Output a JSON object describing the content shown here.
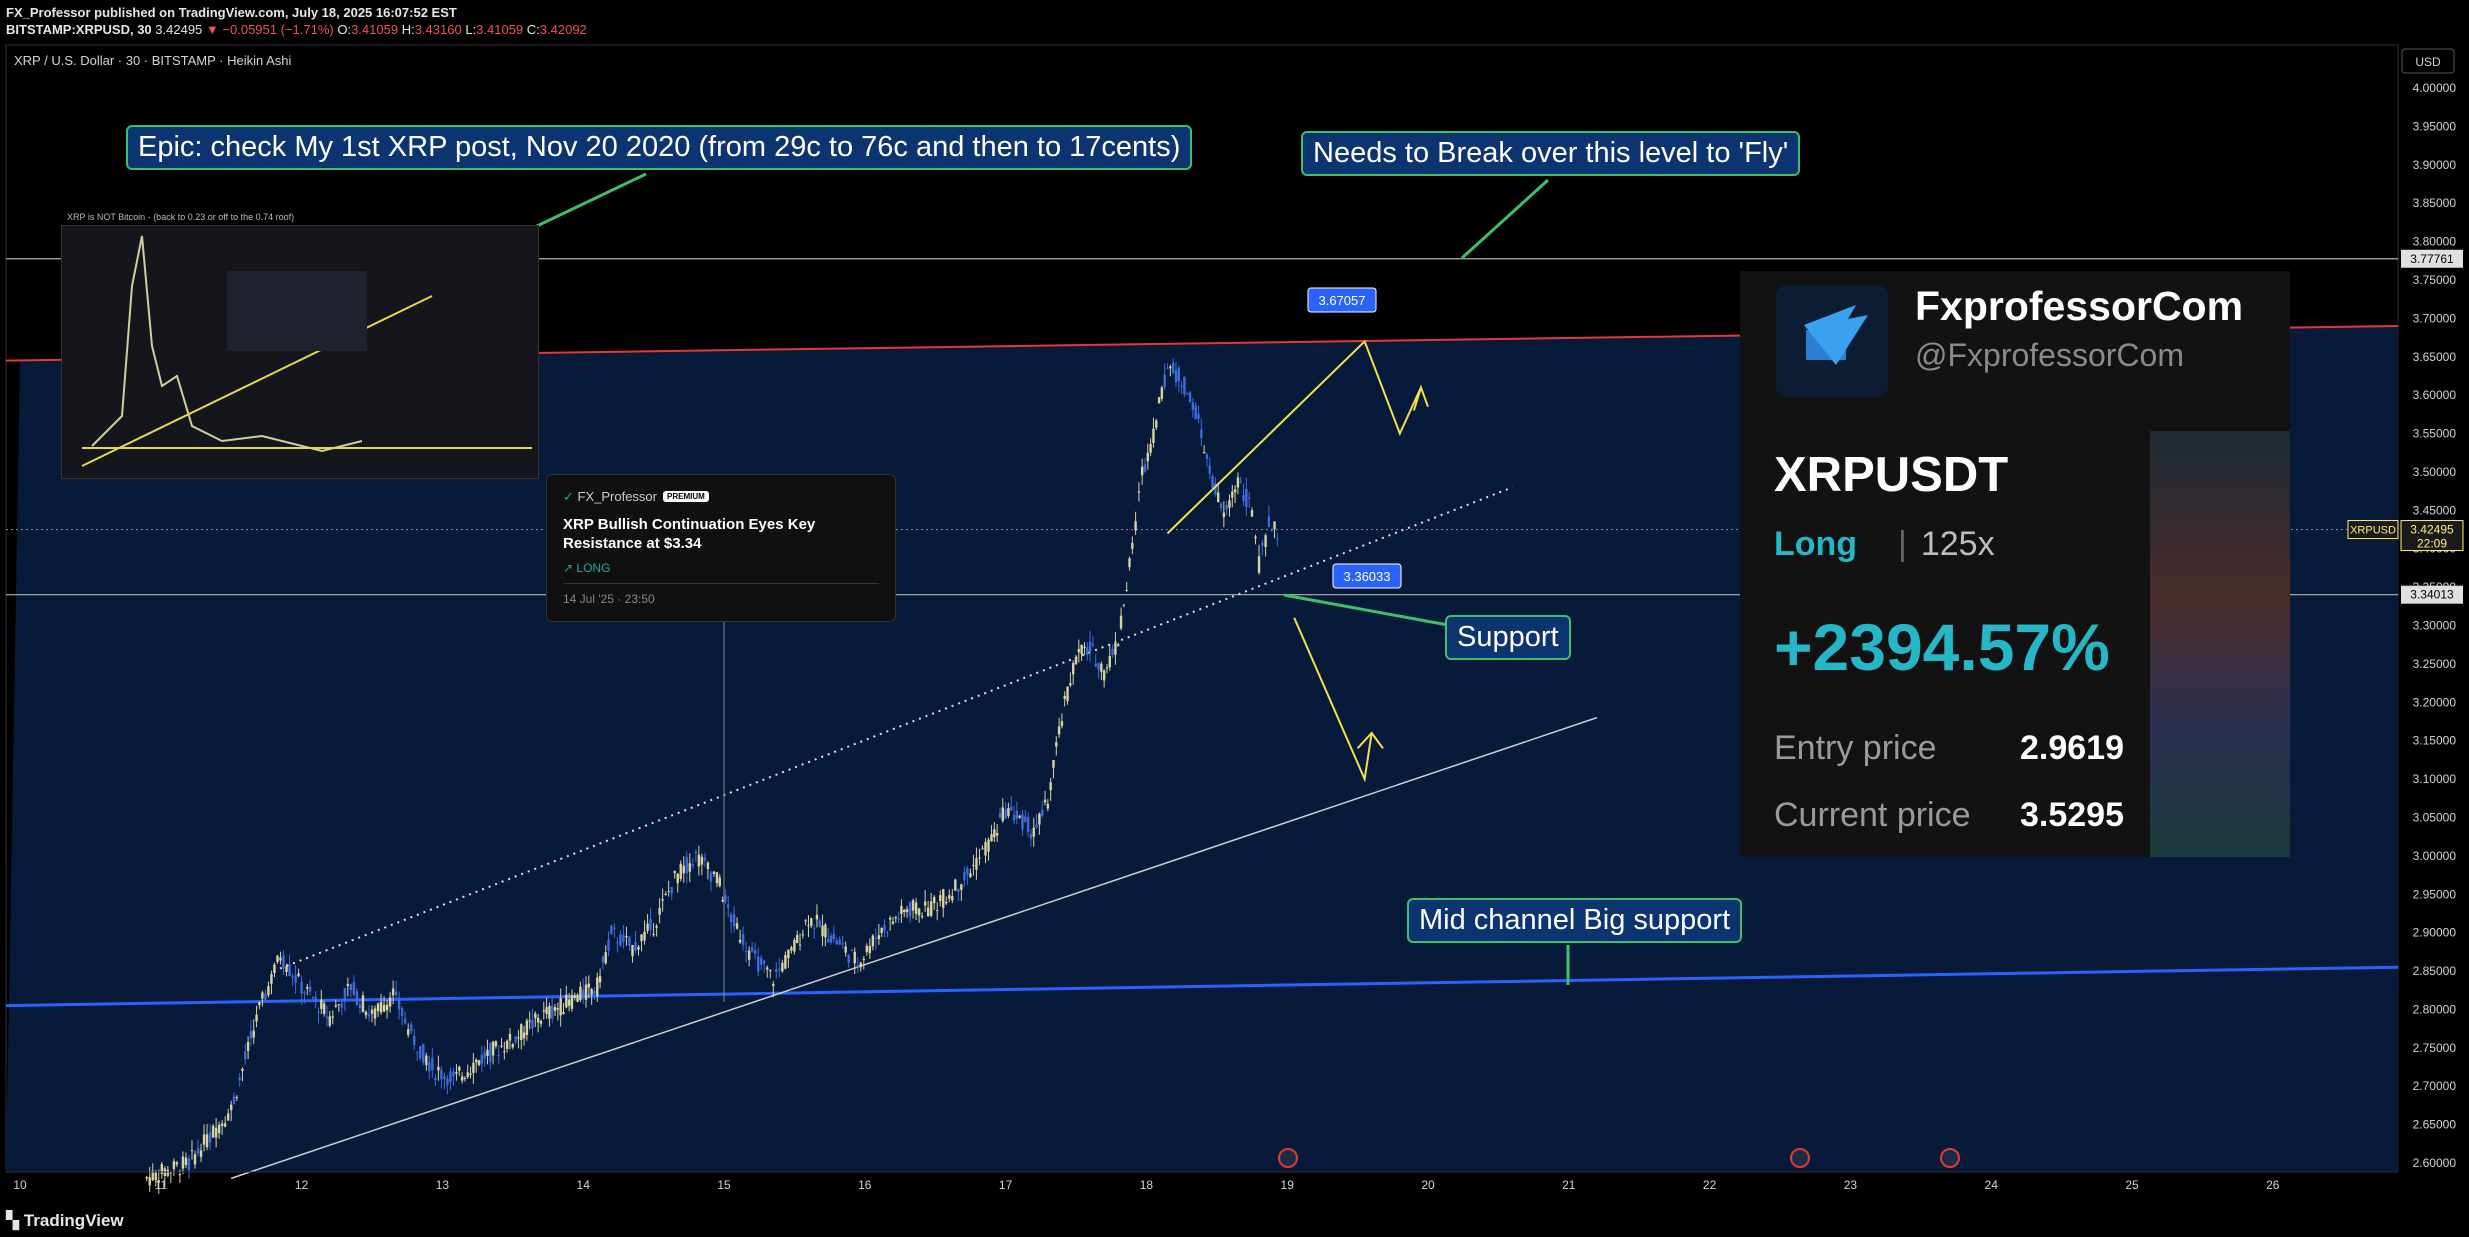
{
  "header": {
    "publish_line": "FX_Professor published on TradingView.com, July 18, 2025 16:07:52 EST",
    "symbol": "BITSTAMP:XRPUSD, 30",
    "last": "3.42495",
    "change": "▼ −0.05951 (−1.71%)",
    "o_label": "O:",
    "o": "3.41059",
    "h_label": "H:",
    "h": "3.43160",
    "l_label": "L:",
    "l": "3.41059",
    "c_label": "C:",
    "c": "3.42092"
  },
  "legend": "XRP / U.S. Dollar · 30 · BITSTAMP · Heikin Ashi",
  "currency_button": "USD",
  "footer": "TradingView",
  "colors": {
    "background": "#000000",
    "channel_fill": "#071a3a",
    "bull_candle": "#d8d3a0",
    "bear_candle": "#3d6bdc",
    "resistance_line": "#e53935",
    "mid_line": "#2962ff",
    "arrow": "#f3e04a"
  },
  "callouts": {
    "epic": "Epic: check My 1st XRP post, Nov 20 2020 (from 29c to 76c and then to 17cents)",
    "fly": "Needs to Break over this level to 'Fly'",
    "support": "Support",
    "mid": "Mid channel Big support"
  },
  "idea_card": {
    "author": "FX_Professor",
    "badge": "PREMIUM",
    "title": "XRP Bullish Continuation Eyes Key Resistance at $3.34",
    "direction": "LONG",
    "date": "14 Jul '25 · 23:50"
  },
  "inset": {
    "title": "XRP is NOT Bitcoin - (back to 0.23 or off to the 0.74 roof)"
  },
  "promo": {
    "brand": "FxprofessorCom",
    "handle": "@FxprofessorCom",
    "symbol": "XRPUSDT",
    "side": "Long",
    "leverage": "125x",
    "pnl": "+2394.57%",
    "entry_label": "Entry price",
    "entry": "2.9619",
    "current_label": "Current price",
    "current": "3.5295"
  },
  "chart_data": {
    "type": "candlestick",
    "style": "Heikin Ashi",
    "timeframe": "30",
    "symbol": "XRPUSD",
    "x_ticks": [
      "10",
      "11",
      "12",
      "13",
      "14",
      "15",
      "16",
      "17",
      "18",
      "19",
      "20",
      "21",
      "22",
      "23",
      "24",
      "25",
      "26"
    ],
    "y_ticks": [
      "4.00000",
      "3.95000",
      "3.90000",
      "3.85000",
      "3.80000",
      "3.75000",
      "3.70000",
      "3.65000",
      "3.60000",
      "3.55000",
      "3.50000",
      "3.45000",
      "3.40000",
      "3.35000",
      "3.30000",
      "3.25000",
      "3.20000",
      "3.15000",
      "3.10000",
      "3.05000",
      "3.00000",
      "2.95000",
      "2.90000",
      "2.85000",
      "2.80000",
      "2.75000",
      "2.70000",
      "2.65000",
      "2.60000"
    ],
    "ylim": [
      2.58,
      4.03
    ],
    "price_labels": [
      {
        "text": "3.77761",
        "value": 3.77761
      },
      {
        "text": "3.42495",
        "value": 3.42495,
        "symbol": "XRPUSD",
        "timer": "22:09"
      },
      {
        "text": "3.34013",
        "value": 3.34013
      }
    ],
    "chart_labels": [
      {
        "text": "3.67057",
        "value": 3.67057
      },
      {
        "text": "3.36033",
        "value": 3.36033
      }
    ],
    "hist_close": [
      [
        10.9,
        2.58
      ],
      [
        11.2,
        2.6
      ],
      [
        11.5,
        2.67
      ],
      [
        11.7,
        2.8
      ],
      [
        11.85,
        2.87
      ],
      [
        12.0,
        2.83
      ],
      [
        12.2,
        2.79
      ],
      [
        12.35,
        2.83
      ],
      [
        12.5,
        2.79
      ],
      [
        12.65,
        2.82
      ],
      [
        12.8,
        2.76
      ],
      [
        12.95,
        2.72
      ],
      [
        13.1,
        2.71
      ],
      [
        13.3,
        2.74
      ],
      [
        13.5,
        2.76
      ],
      [
        13.7,
        2.79
      ],
      [
        13.9,
        2.81
      ],
      [
        14.1,
        2.83
      ],
      [
        14.2,
        2.9
      ],
      [
        14.35,
        2.88
      ],
      [
        14.5,
        2.91
      ],
      [
        14.65,
        2.97
      ],
      [
        14.8,
        3.0
      ],
      [
        14.95,
        2.97
      ],
      [
        15.05,
        2.92
      ],
      [
        15.2,
        2.87
      ],
      [
        15.35,
        2.84
      ],
      [
        15.5,
        2.88
      ],
      [
        15.6,
        2.92
      ],
      [
        15.8,
        2.89
      ],
      [
        15.95,
        2.86
      ],
      [
        16.1,
        2.9
      ],
      [
        16.3,
        2.93
      ],
      [
        16.45,
        2.93
      ],
      [
        16.6,
        2.95
      ],
      [
        16.75,
        2.98
      ],
      [
        16.9,
        3.02
      ],
      [
        17.0,
        3.06
      ],
      [
        17.1,
        3.05
      ],
      [
        17.2,
        3.03
      ],
      [
        17.3,
        3.07
      ],
      [
        17.4,
        3.18
      ],
      [
        17.5,
        3.26
      ],
      [
        17.6,
        3.27
      ],
      [
        17.7,
        3.24
      ],
      [
        17.8,
        3.28
      ],
      [
        17.9,
        3.4
      ],
      [
        17.97,
        3.5
      ],
      [
        18.05,
        3.55
      ],
      [
        18.15,
        3.64
      ],
      [
        18.25,
        3.62
      ],
      [
        18.35,
        3.58
      ],
      [
        18.45,
        3.5
      ],
      [
        18.55,
        3.44
      ],
      [
        18.65,
        3.49
      ],
      [
        18.75,
        3.45
      ],
      [
        18.8,
        3.38
      ],
      [
        18.87,
        3.43
      ],
      [
        18.95,
        3.42
      ]
    ],
    "channel": {
      "lower": [
        [
          11.5,
          2.58
        ],
        [
          21.2,
          3.18
        ]
      ],
      "upper_dotted": [
        [
          11.8,
          2.85
        ],
        [
          20.6,
          3.48
        ]
      ]
    },
    "resistance": [
      [
        10.0,
        3.645
      ],
      [
        27.0,
        3.69
      ]
    ],
    "mid_line": [
      [
        10.0,
        2.805
      ],
      [
        27.0,
        2.855
      ]
    ],
    "hlines": [
      3.77761,
      3.34013
    ]
  }
}
